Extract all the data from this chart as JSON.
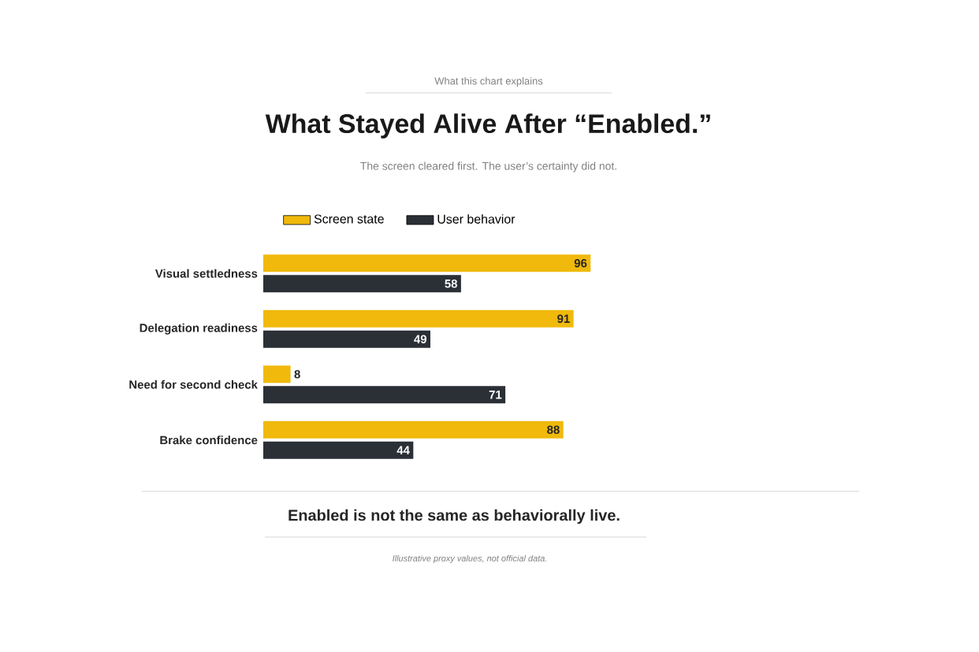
{
  "chart_data": {
    "type": "bar",
    "orientation": "horizontal",
    "title": "What Stayed Alive After “Enabled.”",
    "subtitle": "The screen cleared first. The user’s certainty did not.",
    "categories": [
      "Visual settledness",
      "Delegation readiness",
      "Need for second check",
      "Brake confidence"
    ],
    "series": [
      {
        "name": "Screen state",
        "color": "#f0b90b",
        "values": [
          96,
          91,
          8,
          88
        ]
      },
      {
        "name": "User behavior",
        "color": "#2b2f36",
        "values": [
          58,
          49,
          71,
          44
        ]
      }
    ],
    "data_labels": true,
    "legend": "top",
    "annotations": [
      "What this chart explains",
      "Enabled is not the same as behaviorally live.",
      "Illustrative proxy values, not official data."
    ]
  }
}
